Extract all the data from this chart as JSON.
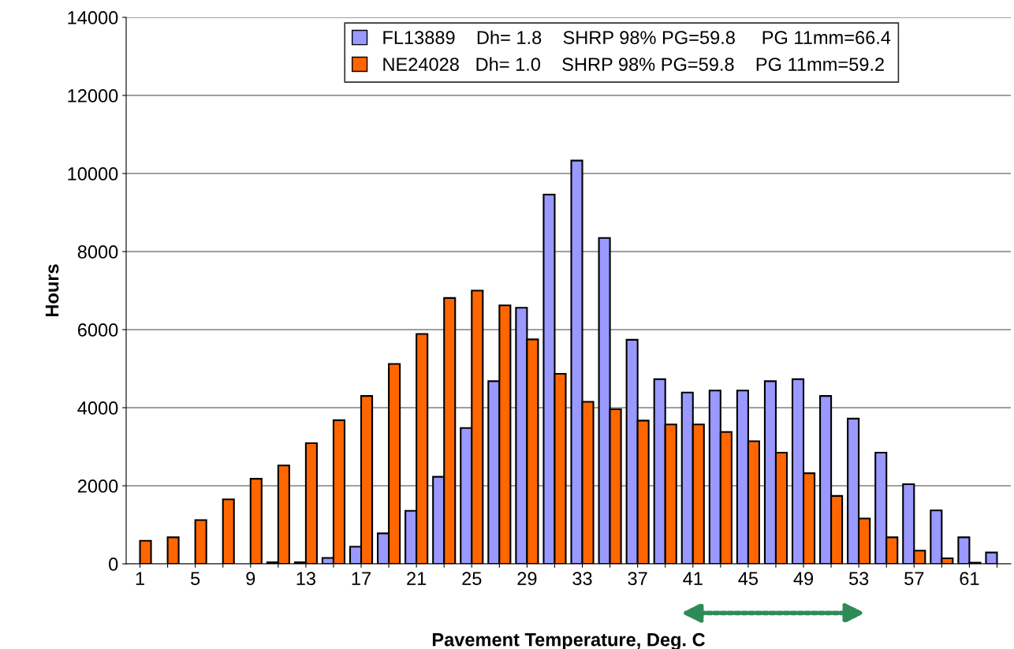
{
  "chart_data": {
    "type": "bar",
    "xlabel": "Pavement Temperature, Deg. C",
    "ylabel": "Hours",
    "categories": [
      "1",
      null,
      "5",
      null,
      "9",
      null,
      "13",
      null,
      "17",
      null,
      "21",
      null,
      "25",
      null,
      "29",
      null,
      "33",
      null,
      "37",
      null,
      "41",
      null,
      "45",
      null,
      "49",
      null,
      "53",
      null,
      "57",
      null,
      "61",
      null
    ],
    "series": [
      {
        "name": "FL13889    Dh= 1.8    SHRP 98% PG=59.8     PG 11mm=66.4",
        "color": "#9999ff",
        "values": [
          null,
          null,
          null,
          null,
          null,
          40,
          40,
          150,
          440,
          780,
          1360,
          2230,
          3480,
          4680,
          6560,
          9460,
          10330,
          8350,
          5740,
          4730,
          4390,
          4440,
          4440,
          4680,
          4730,
          4300,
          3720,
          2850,
          2040,
          1370,
          680,
          290
        ]
      },
      {
        "name": "NE24028   Dh= 1.0    SHRP 98% PG=59.8    PG 11mm=59.2",
        "color": "#ff6600",
        "values": [
          590,
          680,
          1120,
          1650,
          2180,
          2520,
          3090,
          3680,
          4300,
          5120,
          5890,
          6810,
          7000,
          6620,
          5750,
          4870,
          4150,
          3960,
          3670,
          3570,
          3570,
          3380,
          3140,
          2850,
          2320,
          1740,
          1160,
          680,
          340,
          140,
          30,
          null
        ]
      }
    ],
    "ylim": [
      0,
      14000
    ],
    "yticks": [
      0,
      2000,
      4000,
      6000,
      8000,
      10000,
      12000,
      14000
    ],
    "grid": "y",
    "legend": "top"
  }
}
